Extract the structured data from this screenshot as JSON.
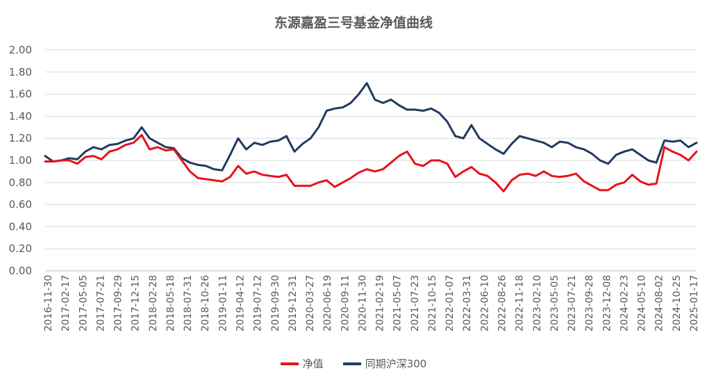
{
  "chart_data": {
    "type": "line",
    "title": "东源嘉盈三号基金净值曲线",
    "ylim": [
      0.0,
      2.0
    ],
    "yticks": [
      "2.00",
      "1.80",
      "1.60",
      "1.40",
      "1.20",
      "1.00",
      "0.80",
      "0.60",
      "0.40",
      "0.20",
      "0.00"
    ],
    "xticks": [
      "2016-11-30",
      "2017-02-17",
      "2017-05-05",
      "2017-07-21",
      "2017-09-29",
      "2017-12-15",
      "2018-02-28",
      "2018-05-18",
      "2018-07-31",
      "2018-10-26",
      "2019-01-11",
      "2019-04-12",
      "2019-07-12",
      "2019-09-30",
      "2019-12-31",
      "2020-03-27",
      "2020-06-19",
      "2020-09-11",
      "2020-11-30",
      "2021-02-19",
      "2021-05-07",
      "2021-07-23",
      "2021-10-15",
      "2022-01-07",
      "2022-03-31",
      "2022-06-10",
      "2022-08-26",
      "2022-11-18",
      "2023-02-10",
      "2023-05-05",
      "2023-07-21",
      "2023-09-28",
      "2023-12-08",
      "2024-02-23",
      "2024-05-10",
      "2024-08-02",
      "2024-10-25",
      "2025-01-17"
    ],
    "grid": true,
    "legend_position": "bottom",
    "series": [
      {
        "name": "净值",
        "color": "#e8101b",
        "values": [
          0.99,
          0.99,
          1.0,
          1.0,
          0.97,
          1.03,
          1.04,
          1.01,
          1.08,
          1.1,
          1.14,
          1.16,
          1.23,
          1.1,
          1.12,
          1.09,
          1.1,
          1.0,
          0.9,
          0.84,
          0.83,
          0.82,
          0.81,
          0.85,
          0.95,
          0.88,
          0.9,
          0.87,
          0.86,
          0.85,
          0.87,
          0.77,
          0.77,
          0.77,
          0.8,
          0.82,
          0.76,
          0.8,
          0.84,
          0.89,
          0.92,
          0.9,
          0.92,
          0.98,
          1.04,
          1.08,
          0.97,
          0.95,
          1.0,
          1.0,
          0.97,
          0.85,
          0.9,
          0.94,
          0.88,
          0.86,
          0.8,
          0.72,
          0.82,
          0.87,
          0.88,
          0.86,
          0.9,
          0.86,
          0.85,
          0.86,
          0.88,
          0.81,
          0.77,
          0.73,
          0.73,
          0.78,
          0.8,
          0.87,
          0.81,
          0.78,
          0.79,
          1.12,
          1.08,
          1.05,
          1.0,
          1.08
        ]
      },
      {
        "name": "同期沪深300",
        "color": "#1f3a5f",
        "values": [
          1.04,
          0.99,
          1.0,
          1.02,
          1.01,
          1.08,
          1.12,
          1.1,
          1.14,
          1.15,
          1.18,
          1.2,
          1.3,
          1.2,
          1.16,
          1.12,
          1.11,
          1.02,
          0.98,
          0.96,
          0.95,
          0.92,
          0.91,
          1.05,
          1.2,
          1.1,
          1.16,
          1.14,
          1.17,
          1.18,
          1.22,
          1.08,
          1.15,
          1.2,
          1.3,
          1.45,
          1.47,
          1.48,
          1.52,
          1.6,
          1.7,
          1.55,
          1.52,
          1.55,
          1.5,
          1.46,
          1.46,
          1.45,
          1.47,
          1.43,
          1.35,
          1.22,
          1.2,
          1.32,
          1.2,
          1.15,
          1.1,
          1.06,
          1.15,
          1.22,
          1.2,
          1.18,
          1.16,
          1.12,
          1.17,
          1.16,
          1.12,
          1.1,
          1.06,
          1.0,
          0.97,
          1.05,
          1.08,
          1.1,
          1.05,
          1.0,
          0.98,
          1.18,
          1.17,
          1.18,
          1.12,
          1.16
        ]
      }
    ]
  }
}
